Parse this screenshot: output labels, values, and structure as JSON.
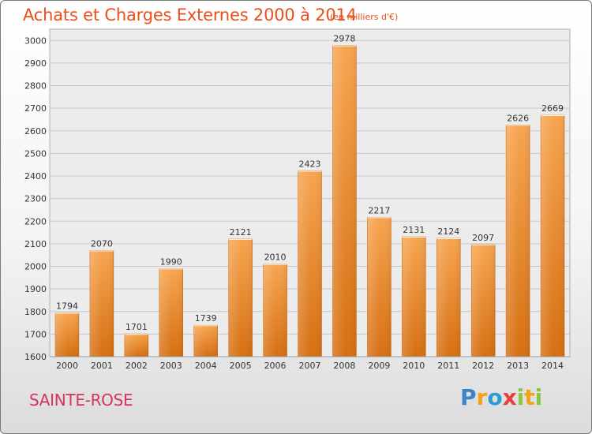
{
  "title": "Achats et Charges Externes 2000 à 2014",
  "unit": "(en milliers d'€)",
  "commune": "SAINTE-ROSE",
  "logo_text": "Proxiti",
  "colors": {
    "title": "#e84f1a",
    "commune": "#d8325e",
    "bar_light": "#f7a550",
    "bar_dark": "#d66f12"
  },
  "chart_data": {
    "type": "bar",
    "categories": [
      "2000",
      "2001",
      "2002",
      "2003",
      "2004",
      "2005",
      "2006",
      "2007",
      "2008",
      "2009",
      "2010",
      "2011",
      "2012",
      "2013",
      "2014"
    ],
    "values": [
      1794,
      2070,
      1701,
      1990,
      1739,
      2121,
      2010,
      2423,
      2978,
      2217,
      2131,
      2124,
      2097,
      2626,
      2669
    ],
    "data_labels": [
      "1794",
      "2070",
      "1701",
      "1990",
      "1739",
      "2121",
      "2010",
      "2423",
      "2978",
      "2217",
      "2131",
      "2124",
      "2097",
      "2626",
      "2669"
    ],
    "yticks": [
      1600,
      1700,
      1800,
      1900,
      2000,
      2100,
      2200,
      2300,
      2400,
      2500,
      2600,
      2700,
      2800,
      2900,
      3000
    ],
    "ylim": [
      1600,
      3050
    ],
    "grid": true,
    "legend": "none"
  }
}
